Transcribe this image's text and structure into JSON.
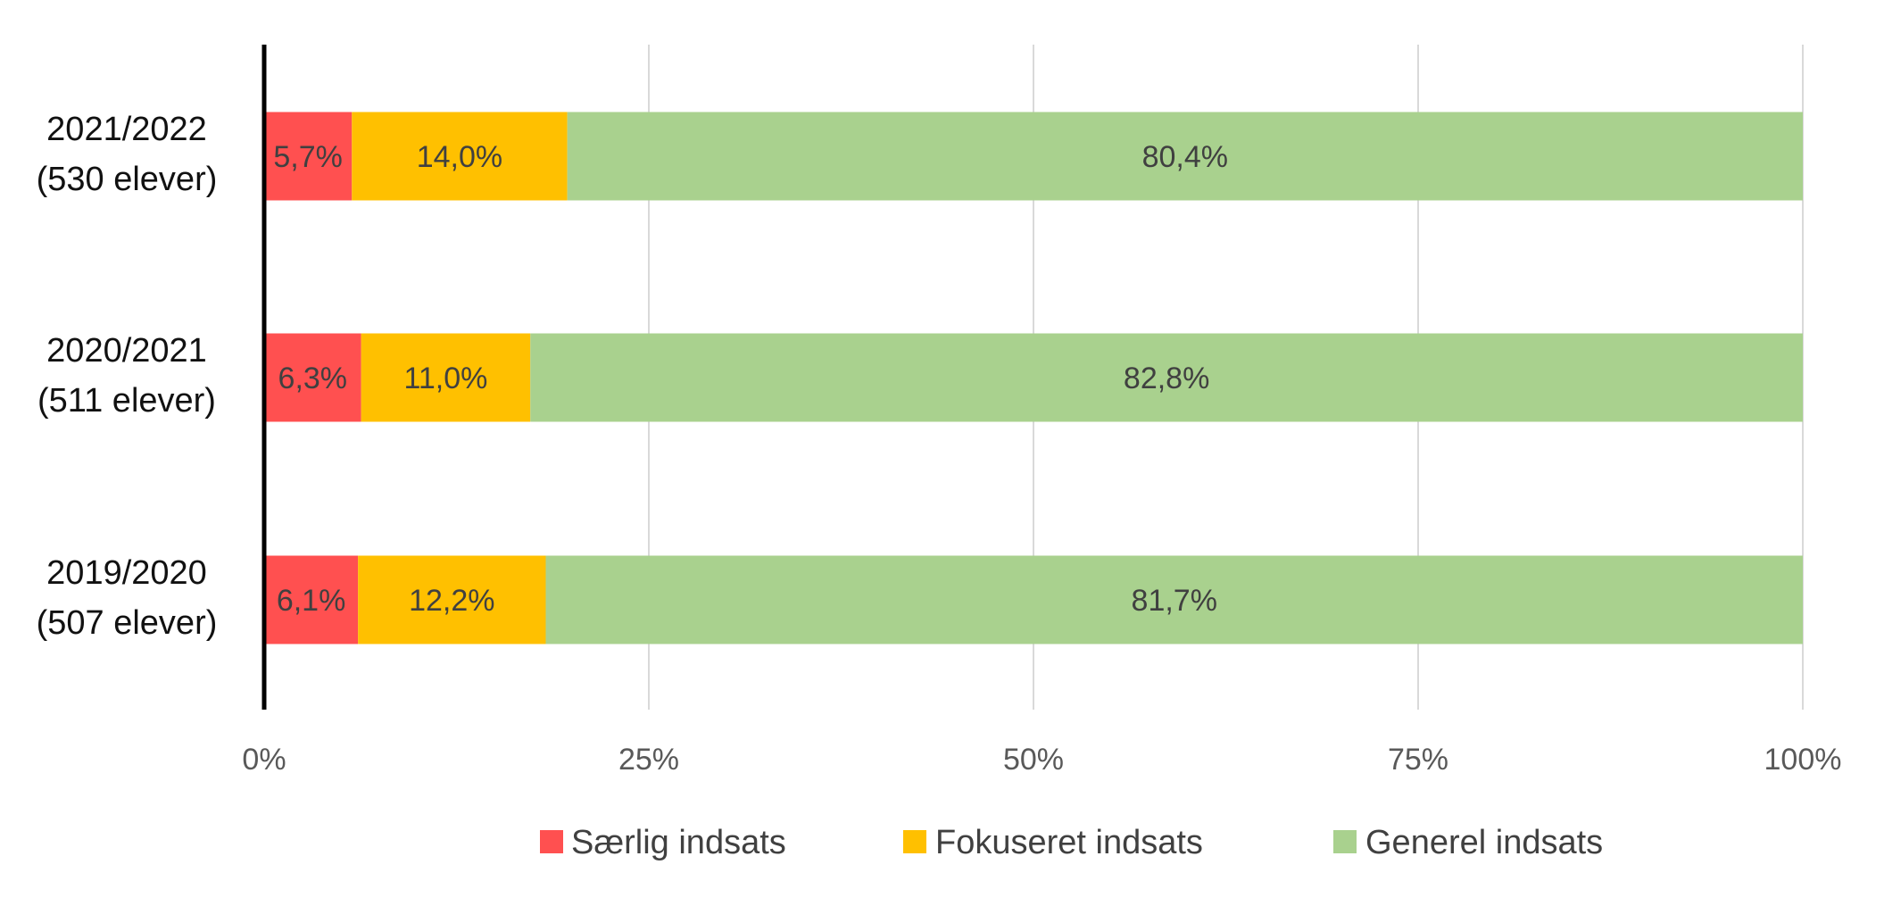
{
  "chart_data": {
    "type": "bar",
    "orientation": "horizontal",
    "stacked": true,
    "title": "",
    "xlabel": "",
    "ylabel": "",
    "xlim": [
      0,
      100
    ],
    "x_ticks": [
      0,
      25,
      50,
      75,
      100
    ],
    "x_tick_labels": [
      "0%",
      "25%",
      "50%",
      "75%",
      "100%"
    ],
    "grid": "vertical",
    "legend_position": "bottom",
    "categories": [
      [
        "2021/2022",
        "(530 elever)"
      ],
      [
        "2020/2021",
        "(511 elever)"
      ],
      [
        "2019/2020",
        "(507 elever)"
      ]
    ],
    "series": [
      {
        "name": "Særlig indsats",
        "color": "#FF5050",
        "values": [
          5.7,
          6.3,
          6.1
        ],
        "labels": [
          "5,7%",
          "6,3%",
          "6,1%"
        ]
      },
      {
        "name": "Fokuseret indsats",
        "color": "#FFC000",
        "values": [
          14.0,
          11.0,
          12.2
        ],
        "labels": [
          "14,0%",
          "11,0%",
          "12,2%"
        ]
      },
      {
        "name": "Generel indsats",
        "color": "#A9D18E",
        "values": [
          80.4,
          82.8,
          81.7
        ],
        "labels": [
          "80,4%",
          "82,8%",
          "81,7%"
        ]
      }
    ]
  }
}
